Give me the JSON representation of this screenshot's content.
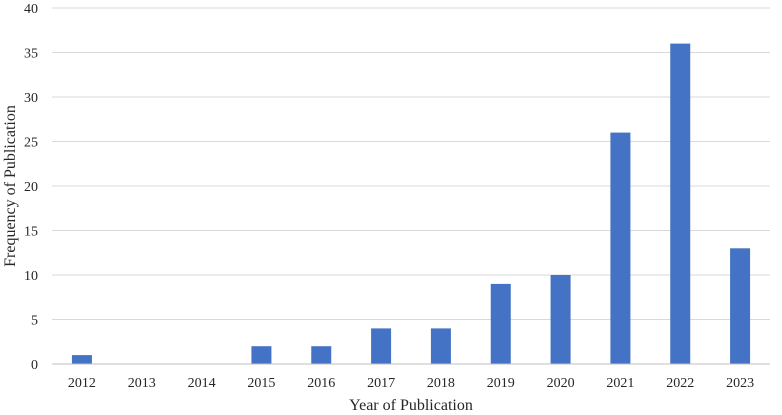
{
  "chart_data": {
    "type": "bar",
    "title": "",
    "categories": [
      "2012",
      "2013",
      "2014",
      "2015",
      "2016",
      "2017",
      "2018",
      "2019",
      "2020",
      "2021",
      "2022",
      "2023"
    ],
    "values": [
      1,
      0,
      0,
      2,
      2,
      4,
      4,
      9,
      10,
      26,
      36,
      13
    ],
    "xlabel": "Year of Publication",
    "ylabel": "Frequency of Publication",
    "ylim": [
      0,
      40
    ],
    "yticks": [
      0,
      5,
      10,
      15,
      20,
      25,
      30,
      35,
      40
    ],
    "grid": "horizontal",
    "bar_color": "#4472c4",
    "legend": "none"
  }
}
